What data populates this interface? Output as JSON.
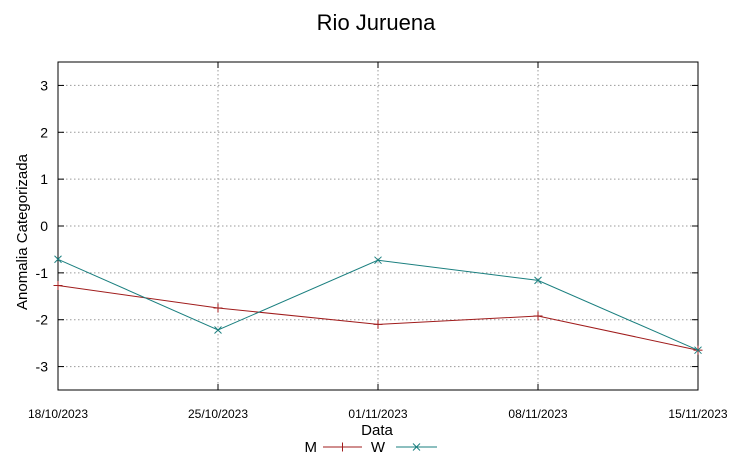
{
  "chart_data": {
    "type": "line",
    "title": "Rio Juruena",
    "xlabel": "Data",
    "ylabel": "Anomalia Categorizada",
    "categories": [
      "18/10/2023",
      "25/10/2023",
      "01/11/2023",
      "08/11/2023",
      "15/11/2023"
    ],
    "yticks": [
      "3",
      "2",
      "1",
      "0",
      "-1",
      "-2",
      "-3"
    ],
    "ylim": [
      -3.5,
      3.5
    ],
    "grid": true,
    "legend_position": "bottom",
    "series": [
      {
        "name": "M",
        "values": [
          -1.27,
          -1.75,
          -2.1,
          -1.92,
          -2.65
        ],
        "color": "#a01c1c",
        "marker": "plus"
      },
      {
        "name": "W",
        "values": [
          -0.71,
          -2.22,
          -0.73,
          -1.16,
          -2.65
        ],
        "color": "#1a7f7f",
        "marker": "cross"
      }
    ]
  }
}
